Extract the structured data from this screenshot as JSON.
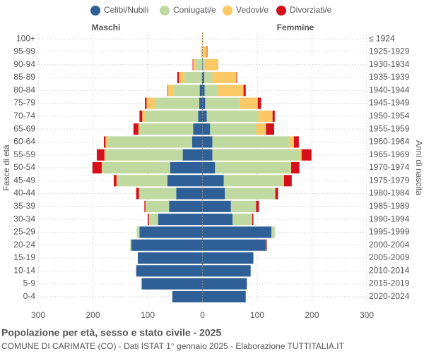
{
  "chart_data": {
    "type": "pyramid",
    "title": "Popolazione per età, sesso e stato civile - 2025",
    "subtitle": "COMUNE DI CARIMATE (CO) - Dati ISTAT 1° gennaio 2025 - Elaborazione TUTTITALIA.IT",
    "left_label": "Maschi",
    "right_label": "Femmine",
    "y_label": "Fasce di età",
    "y2_label": "Anni di nascita",
    "categories": [
      "100+",
      "95-99",
      "90-94",
      "85-89",
      "80-84",
      "75-79",
      "70-74",
      "65-69",
      "60-64",
      "55-59",
      "50-54",
      "45-49",
      "40-44",
      "35-39",
      "30-34",
      "25-29",
      "20-24",
      "15-19",
      "10-14",
      "5-9",
      "0-4"
    ],
    "birth_years": [
      "≤ 1924",
      "1925-1929",
      "1930-1934",
      "1935-1939",
      "1940-1944",
      "1945-1949",
      "1950-1954",
      "1955-1959",
      "1960-1964",
      "1965-1969",
      "1970-1974",
      "1975-1979",
      "1980-1984",
      "1985-1989",
      "1990-1994",
      "1995-1999",
      "2000-2004",
      "2005-2009",
      "2010-2014",
      "2015-2019",
      "2020-2024"
    ],
    "series": [
      {
        "name": "Celibi/Nubili",
        "color": "#2e5f97",
        "male_values": [
          0,
          0,
          0,
          1,
          5,
          6,
          8,
          17,
          19,
          36,
          59,
          64,
          48,
          61,
          81,
          115,
          130,
          118,
          121,
          111,
          55
        ],
        "female_values": [
          0,
          0,
          1,
          3,
          4,
          5,
          8,
          14,
          18,
          18,
          23,
          39,
          41,
          52,
          55,
          126,
          116,
          93,
          88,
          81,
          79
        ]
      },
      {
        "name": "Coniugati/e",
        "color": "#bfd9a0",
        "male_values": [
          0,
          1,
          13,
          32,
          48,
          81,
          97,
          97,
          153,
          142,
          124,
          91,
          68,
          42,
          17,
          5,
          2,
          0,
          0,
          0,
          0
        ],
        "female_values": [
          0,
          0,
          3,
          15,
          23,
          63,
          94,
          84,
          140,
          158,
          138,
          107,
          91,
          46,
          36,
          6,
          1,
          0,
          0,
          0,
          0
        ]
      },
      {
        "name": "Vedovi/e",
        "color": "#fbc866",
        "male_values": [
          1,
          2,
          4,
          10,
          10,
          15,
          5,
          3,
          5,
          1,
          1,
          2,
          0,
          1,
          0,
          0,
          0,
          0,
          0,
          0,
          0
        ],
        "female_values": [
          1,
          8,
          25,
          44,
          48,
          33,
          26,
          18,
          9,
          5,
          1,
          3,
          1,
          0,
          0,
          0,
          0,
          0,
          0,
          0,
          0
        ]
      },
      {
        "name": "Divorziati/e",
        "color": "#d3101c",
        "male_values": [
          0,
          0,
          1,
          3,
          1,
          3,
          5,
          9,
          3,
          14,
          17,
          5,
          5,
          2,
          2,
          0,
          0,
          0,
          0,
          0,
          0
        ],
        "female_values": [
          0,
          1,
          0,
          1,
          4,
          6,
          4,
          15,
          9,
          18,
          15,
          14,
          5,
          5,
          2,
          0,
          1,
          0,
          0,
          0,
          0
        ]
      }
    ],
    "xlim": [
      -300,
      300
    ],
    "xticks": [
      {
        "value": -300,
        "label": "300"
      },
      {
        "value": -200,
        "label": "200"
      },
      {
        "value": -100,
        "label": "100"
      },
      0,
      100,
      200,
      300
    ],
    "grid": true
  }
}
